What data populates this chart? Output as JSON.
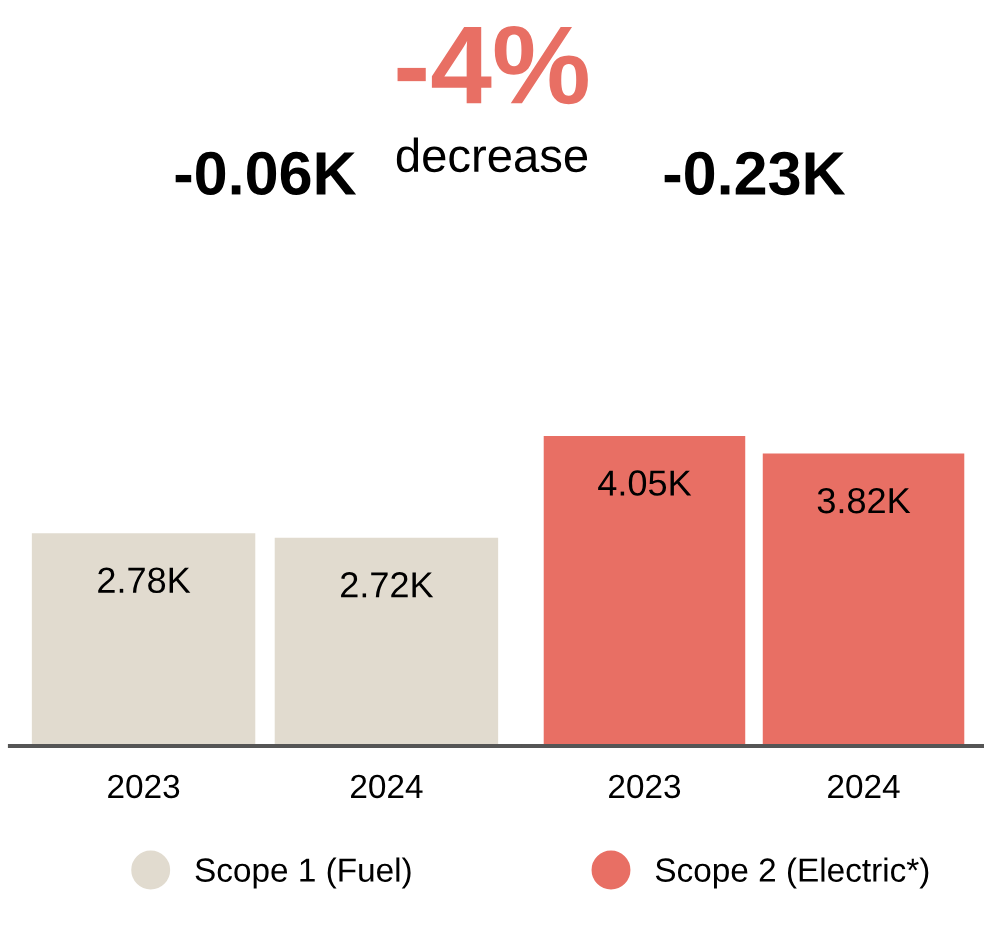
{
  "chart_data": [
    {
      "type": "other",
      "title": "-4%",
      "subtitle": "decrease"
    },
    {
      "type": "bar",
      "title": "-0.06K",
      "categories": [
        "2023",
        "2024"
      ],
      "legend": "bottom",
      "series": [
        {
          "name": "Scope 1 (Fuel)",
          "color": "#e1dbcf",
          "values": [
            2.78,
            2.72
          ],
          "value_labels": [
            "2.78K",
            "2.72K"
          ]
        }
      ]
    },
    {
      "type": "bar",
      "title": "-0.23K",
      "categories": [
        "2023",
        "2024"
      ],
      "legend": "bottom",
      "series": [
        {
          "name": "Scope 2 (Electric*)",
          "color": "#e86f64",
          "values": [
            4.05,
            3.82
          ],
          "value_labels": [
            "4.05K",
            "3.82K"
          ]
        }
      ]
    }
  ]
}
